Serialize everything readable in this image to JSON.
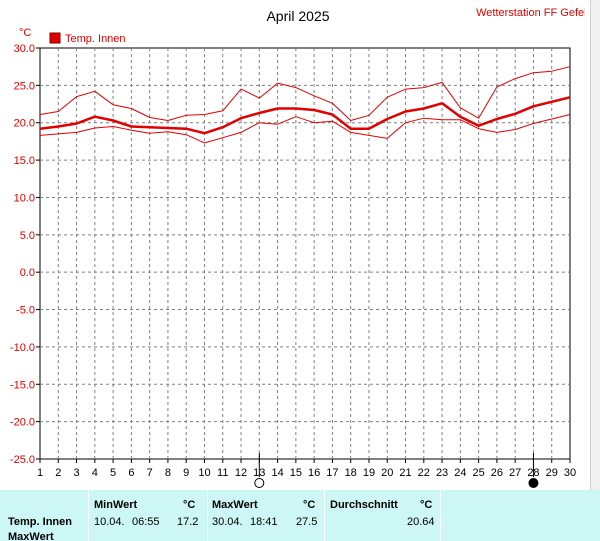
{
  "header": {
    "station": "Wetterstation FF Gefell"
  },
  "chart_data": {
    "type": "line",
    "title": "April 2025",
    "yunit": "°C",
    "ylim": [
      -25,
      30
    ],
    "yticks": [
      30,
      25,
      20,
      15,
      10,
      5,
      0,
      -5,
      -10,
      -15,
      -20,
      -25
    ],
    "ytick_labels": [
      "30.0",
      "25.0",
      "20.0",
      "15.0",
      "10.0",
      "5.0",
      "0.0",
      "-5.0",
      "-10.0",
      "-15.0",
      "-20.0",
      "-25.0"
    ],
    "x": [
      1,
      2,
      3,
      4,
      5,
      6,
      7,
      8,
      9,
      10,
      11,
      12,
      13,
      14,
      15,
      16,
      17,
      18,
      19,
      20,
      21,
      22,
      23,
      24,
      25,
      26,
      27,
      28,
      29,
      30
    ],
    "grid": true,
    "legend": "top-left",
    "legend_label": "Temp. Innen",
    "series": [
      {
        "role": "max",
        "color": "#e00000",
        "values": [
          21.1,
          21.5,
          23.5,
          24.2,
          22.4,
          21.9,
          20.7,
          20.3,
          21.0,
          21.1,
          21.6,
          24.5,
          23.3,
          25.3,
          24.7,
          23.6,
          22.6,
          20.3,
          21.0,
          23.4,
          24.5,
          24.7,
          25.4,
          22.0,
          20.6,
          24.8,
          25.9,
          26.7,
          26.9,
          27.5
        ]
      },
      {
        "role": "avg",
        "color": "#e00000",
        "bold": true,
        "values": [
          19.2,
          19.5,
          19.9,
          20.8,
          20.3,
          19.5,
          19.4,
          19.3,
          19.2,
          18.6,
          19.4,
          20.6,
          21.3,
          21.9,
          21.9,
          21.7,
          21.1,
          19.2,
          19.2,
          20.5,
          21.5,
          21.9,
          22.6,
          20.8,
          19.6,
          20.5,
          21.2,
          22.2,
          22.8,
          23.4
        ]
      },
      {
        "role": "min",
        "color": "#e00000",
        "values": [
          18.3,
          18.5,
          18.7,
          19.3,
          19.5,
          19.0,
          18.6,
          18.8,
          18.4,
          17.3,
          18.0,
          18.7,
          20.0,
          19.8,
          20.8,
          20.0,
          20.2,
          18.7,
          18.3,
          17.9,
          20.0,
          20.6,
          20.4,
          20.4,
          19.2,
          18.7,
          19.1,
          19.9,
          20.5,
          21.1
        ]
      }
    ],
    "markers": [
      {
        "x": 13,
        "type": "full-moon"
      },
      {
        "x": 28,
        "type": "new-moon"
      }
    ]
  },
  "stats": {
    "min_header": "MinWert",
    "max_header": "MaxWert",
    "avg_header": "Durchschnitt",
    "unit": "°C",
    "row": {
      "name": "Temp. Innen",
      "min_date": "10.04.",
      "min_time": "06:55",
      "min_value": "17.2",
      "max_date": "30.04.",
      "max_time": "18:41",
      "max_value": "27.5",
      "avg_value": "20.64"
    },
    "row2_label": "MaxWert"
  }
}
